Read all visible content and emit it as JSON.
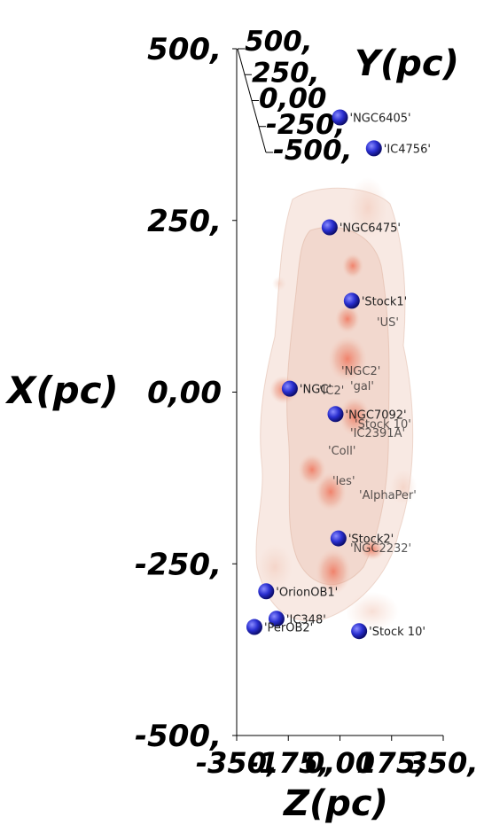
{
  "chart_data": {
    "type": "scatter",
    "title": "",
    "xlabel": "Z(pc)",
    "ylabel": "X(pc)",
    "zlabel": "Y(pc)",
    "xlim": [
      -350,
      350
    ],
    "ylim": [
      -500,
      500
    ],
    "zlim": [
      -500,
      500
    ],
    "x_ticks": [
      "-350,",
      "-175,",
      "0,00",
      "175,",
      "350,"
    ],
    "y_ticks": [
      "500,",
      "250,",
      "0,00",
      "-250,",
      "-500,"
    ],
    "z_ticks": [
      "500,",
      "250,",
      "0,00",
      "-250,",
      "-500,"
    ],
    "grid": false,
    "points": [
      {
        "name": "'NGC6405'",
        "x": 0,
        "y": 400
      },
      {
        "name": "'IC4756'",
        "x": 115,
        "y": 355
      },
      {
        "name": "'NGC6475'",
        "x": -35,
        "y": 240
      },
      {
        "name": "'Stock1'",
        "x": 40,
        "y": 133
      },
      {
        "name": "'NGC'",
        "x": -170,
        "y": 5
      },
      {
        "name": "'NGC7092'",
        "x": -15,
        "y": -32
      },
      {
        "name": "'Stock2'",
        "x": -5,
        "y": -213
      },
      {
        "name": "'OrionOB1'",
        "x": -250,
        "y": -290
      },
      {
        "name": "'IC348'",
        "x": -215,
        "y": -330
      },
      {
        "name": "'PerOB2'",
        "x": -290,
        "y": -342
      },
      {
        "name": "'Stock 10'",
        "x": 65,
        "y": -348
      }
    ],
    "faint_labels": [
      "'IC2'",
      "'Stock 10'",
      "'NGC2'",
      "'IC2391A'",
      "'Coll'",
      "'les'",
      "'AlphaPer'",
      "'NGC2232'",
      "'US'",
      "'gal'"
    ]
  }
}
